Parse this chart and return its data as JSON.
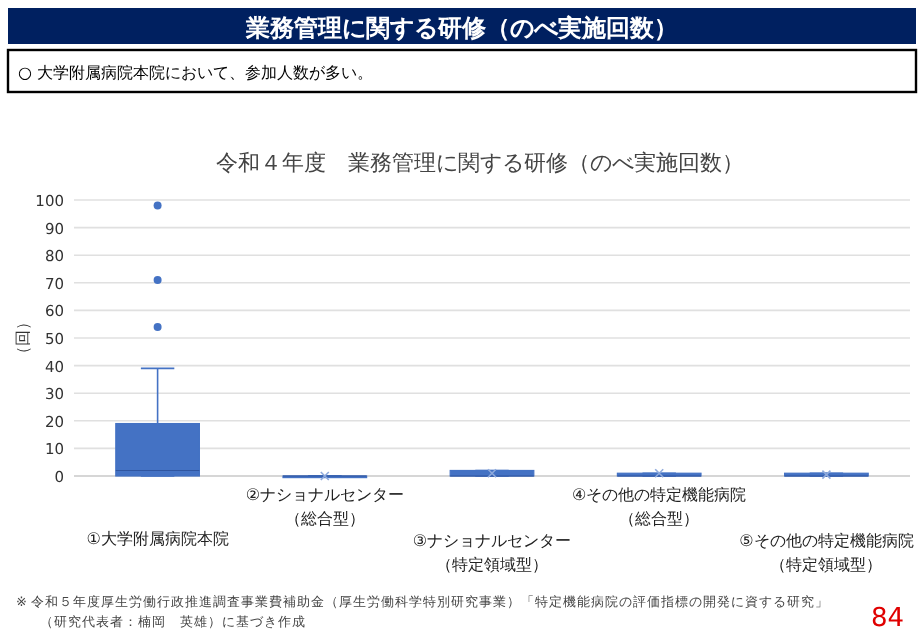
{
  "chart_data": {
    "type": "box",
    "title": "業務管理に関する研修（のべ実施回数）",
    "subtitle": "令和４年度　業務管理に関する研修（のべ実施回数）",
    "ylabel": "（回）",
    "categories": [
      "①大学附属病院本院",
      "②ナショナルセンター（総合型）",
      "③ナショナルセンター（特定領域型）",
      "④その他の特定機能病院（総合型）",
      "⑤その他の特定機能病院（特定領域型）"
    ],
    "boxes": [
      {
        "low": 0,
        "q1": 0,
        "median": 2,
        "q3": 19,
        "high": 39,
        "outliers": [
          54,
          71,
          98
        ]
      },
      {
        "low": 0,
        "q1": 0,
        "median": 0,
        "q3": 0,
        "high": 0,
        "mean": 0
      },
      {
        "low": 0,
        "q1": 0,
        "median": 0,
        "q3": 2,
        "high": 2,
        "mean": 1
      },
      {
        "low": 0,
        "q1": 0,
        "median": 0,
        "q3": 1,
        "high": 1,
        "mean": 1
      },
      {
        "low": 0,
        "q1": 0,
        "median": 0,
        "q3": 1,
        "high": 1,
        "mean": 0.5
      }
    ],
    "color": "#4472c4",
    "ylim": [
      0,
      100
    ],
    "yticks": [
      0,
      10,
      20,
      30,
      40,
      50,
      60,
      70,
      80,
      90,
      100
    ],
    "grid": "y",
    "annotations": [
      "○ 大学附属病院本院において、参加人数が多い。",
      "※ 令和５年度厚生労働行政推進調査事業費補助金（厚生労働科学特別研究事業）「特定機能病院の評価指標の開発に資する研究」",
      "（研究代表者：楠岡　英雄）に基づき作成",
      "84"
    ]
  }
}
